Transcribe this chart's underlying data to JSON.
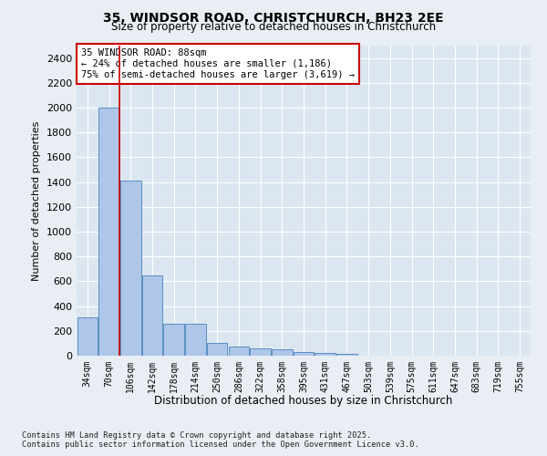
{
  "title1": "35, WINDSOR ROAD, CHRISTCHURCH, BH23 2EE",
  "title2": "Size of property relative to detached houses in Christchurch",
  "xlabel": "Distribution of detached houses by size in Christchurch",
  "ylabel": "Number of detached properties",
  "categories": [
    "34sqm",
    "70sqm",
    "106sqm",
    "142sqm",
    "178sqm",
    "214sqm",
    "250sqm",
    "286sqm",
    "322sqm",
    "358sqm",
    "395sqm",
    "431sqm",
    "467sqm",
    "503sqm",
    "539sqm",
    "575sqm",
    "611sqm",
    "647sqm",
    "683sqm",
    "719sqm",
    "755sqm"
  ],
  "values": [
    310,
    2000,
    1415,
    645,
    255,
    255,
    105,
    75,
    60,
    55,
    30,
    20,
    15,
    0,
    0,
    0,
    0,
    0,
    0,
    0,
    0
  ],
  "bar_color": "#aec6e8",
  "bar_edge_color": "#5a8fc2",
  "vline_x_index": 1.5,
  "annotation_text": "35 WINDSOR ROAD: 88sqm\n← 24% of detached houses are smaller (1,186)\n75% of semi-detached houses are larger (3,619) →",
  "annotation_box_color": "#ffffff",
  "annotation_box_edge": "#cc0000",
  "vline_color": "#cc0000",
  "footer1": "Contains HM Land Registry data © Crown copyright and database right 2025.",
  "footer2": "Contains public sector information licensed under the Open Government Licence v3.0.",
  "bg_color": "#e8eef4",
  "plot_bg_color": "#dce6f0",
  "ylim": [
    0,
    2500
  ],
  "yticks": [
    0,
    200,
    400,
    600,
    800,
    1000,
    1200,
    1400,
    1600,
    1800,
    2000,
    2200,
    2400
  ]
}
